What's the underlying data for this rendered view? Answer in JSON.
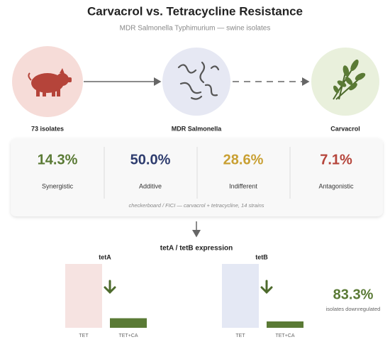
{
  "header": {
    "title": "Carvacrol vs. Tetracycline Resistance",
    "subtitle": "MDR Salmonella Typhimurium — swine isolates"
  },
  "flow": {
    "nodes": [
      {
        "label": "73 isolates"
      },
      {
        "label": "MDR Salmonella"
      },
      {
        "label": "Carvacrol"
      }
    ]
  },
  "interactions": {
    "items": [
      {
        "value": "14.3%",
        "label": "Synergistic",
        "color": "#5a7a35"
      },
      {
        "value": "50.0%",
        "label": "Additive",
        "color": "#2e3c6e"
      },
      {
        "value": "28.6%",
        "label": "Indifferent",
        "color": "#c9a033"
      },
      {
        "value": "7.1%",
        "label": "Antagonistic",
        "color": "#b5443a"
      }
    ],
    "note": "checkerboard / FICI — carvacrol + tetracycline, 14 strains"
  },
  "expression": {
    "title": "tetA / tetB expression",
    "panels": [
      {
        "gene": "tetA",
        "categories": [
          "TET",
          "TET+CA"
        ],
        "values": [
          1,
          0.15
        ],
        "ylim": [
          0,
          1
        ],
        "colors": [
          "#f6e3e1",
          "#5a7a35"
        ]
      },
      {
        "gene": "tetB",
        "categories": [
          "TET",
          "TET+CA"
        ],
        "values": [
          1,
          0.1
        ],
        "ylim": [
          0,
          1
        ],
        "colors": [
          "#e4e8f4",
          "#5a7a35"
        ]
      }
    ],
    "summary": {
      "value": "83.3%",
      "label": "isolates downregulated"
    }
  }
}
